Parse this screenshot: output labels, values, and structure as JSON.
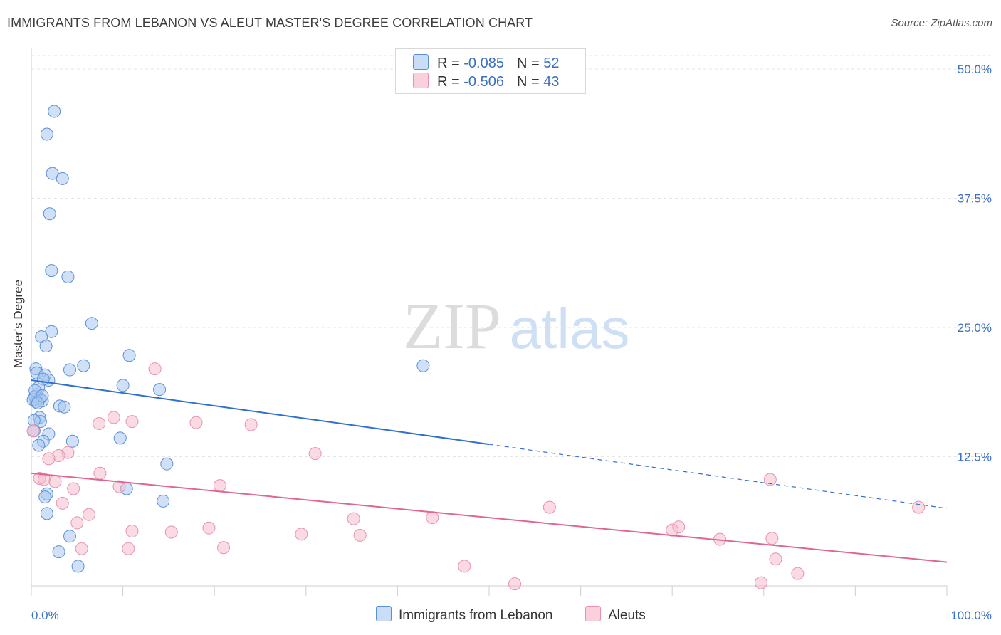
{
  "title": "IMMIGRANTS FROM LEBANON VS ALEUT MASTER'S DEGREE CORRELATION CHART",
  "source": "Source: ZipAtlas.com",
  "watermark": {
    "zip": "ZIP",
    "atlas": "atlas"
  },
  "legend": {
    "rows": [
      {
        "r_label": "R = ",
        "r_value": "-0.085",
        "n_label": "N = ",
        "n_value": "52",
        "color": "#a9c8f0"
      },
      {
        "r_label": "R = ",
        "r_value": "-0.506",
        "n_label": "N = ",
        "n_value": "43",
        "color": "#f5b8ca"
      }
    ]
  },
  "bottom_legend": [
    {
      "label": "Immigrants from Lebanon",
      "color": "#a9c8f0"
    },
    {
      "label": "Aleuts",
      "color": "#f5b8ca"
    }
  ],
  "colors": {
    "blue_fill": "#a9c8f0",
    "blue_stroke": "#5b8fd6",
    "blue_line": "#2f6fd0",
    "pink_fill": "#f5b8ca",
    "pink_stroke": "#e892ad",
    "pink_line": "#e0668f",
    "tick_label": "#3a6fc4",
    "grid": "#e6e6e6"
  },
  "chart_data": {
    "type": "scatter",
    "title": "IMMIGRANTS FROM LEBANON VS ALEUT MASTER'S DEGREE CORRELATION CHART",
    "xlabel": "",
    "ylabel": "Master's Degree",
    "xlim": [
      0,
      100
    ],
    "ylim": [
      0,
      50
    ],
    "x_tick_labels": [
      "0.0%",
      "100.0%"
    ],
    "y_ticks": [
      12.5,
      25.0,
      37.5,
      50.0
    ],
    "y_tick_labels": [
      "12.5%",
      "25.0%",
      "37.5%",
      "50.0%"
    ],
    "grid": "horizontal dashed",
    "legend_position": "top-center",
    "series": [
      {
        "name": "Immigrants from Lebanon",
        "R": -0.085,
        "N": 52,
        "trend": {
          "y_at_x0": 19.9,
          "y_at_x100": 7.5,
          "solid_until_x": 50
        },
        "points": [
          [
            2.5,
            45.9
          ],
          [
            1.7,
            43.7
          ],
          [
            2.3,
            39.9
          ],
          [
            3.4,
            39.4
          ],
          [
            2.0,
            36.0
          ],
          [
            2.2,
            30.5
          ],
          [
            4.0,
            29.9
          ],
          [
            6.6,
            25.4
          ],
          [
            2.2,
            24.6
          ],
          [
            1.1,
            24.1
          ],
          [
            1.6,
            23.2
          ],
          [
            10.7,
            22.3
          ],
          [
            5.7,
            21.3
          ],
          [
            4.2,
            20.9
          ],
          [
            0.5,
            21.0
          ],
          [
            0.6,
            20.6
          ],
          [
            1.5,
            20.4
          ],
          [
            1.9,
            19.9
          ],
          [
            1.3,
            20.0
          ],
          [
            0.8,
            19.2
          ],
          [
            0.6,
            18.5
          ],
          [
            0.4,
            18.3
          ],
          [
            0.9,
            18.1
          ],
          [
            1.2,
            17.9
          ],
          [
            0.5,
            17.8
          ],
          [
            3.1,
            17.4
          ],
          [
            3.6,
            17.3
          ],
          [
            0.9,
            16.3
          ],
          [
            1.0,
            15.9
          ],
          [
            1.9,
            14.7
          ],
          [
            1.3,
            14.0
          ],
          [
            0.8,
            13.6
          ],
          [
            4.5,
            14.0
          ],
          [
            9.7,
            14.3
          ],
          [
            14.0,
            19.0
          ],
          [
            10.0,
            19.4
          ],
          [
            14.8,
            11.8
          ],
          [
            10.4,
            9.4
          ],
          [
            1.7,
            8.9
          ],
          [
            1.5,
            8.6
          ],
          [
            14.4,
            8.2
          ],
          [
            1.7,
            7.0
          ],
          [
            4.2,
            4.8
          ],
          [
            3.0,
            3.3
          ],
          [
            5.1,
            1.9
          ],
          [
            42.8,
            21.3
          ],
          [
            0.4,
            18.9
          ],
          [
            0.2,
            18.0
          ],
          [
            0.3,
            16.0
          ],
          [
            1.2,
            18.4
          ],
          [
            0.7,
            17.7
          ],
          [
            0.3,
            15.0
          ]
        ]
      },
      {
        "name": "Aleuts",
        "R": -0.506,
        "N": 43,
        "trend": {
          "y_at_x0": 10.9,
          "y_at_x100": 2.3
        },
        "points": [
          [
            0.2,
            15.0
          ],
          [
            13.5,
            21.0
          ],
          [
            9.0,
            16.3
          ],
          [
            11.0,
            15.9
          ],
          [
            18.0,
            15.8
          ],
          [
            24.0,
            15.6
          ],
          [
            7.4,
            15.7
          ],
          [
            4.0,
            12.9
          ],
          [
            3.0,
            12.6
          ],
          [
            1.9,
            12.3
          ],
          [
            31.0,
            12.8
          ],
          [
            7.5,
            10.9
          ],
          [
            0.9,
            10.4
          ],
          [
            1.4,
            10.3
          ],
          [
            2.6,
            10.1
          ],
          [
            20.6,
            9.7
          ],
          [
            9.6,
            9.6
          ],
          [
            4.6,
            9.4
          ],
          [
            3.4,
            8.0
          ],
          [
            5.0,
            6.1
          ],
          [
            6.3,
            6.9
          ],
          [
            11.0,
            5.3
          ],
          [
            15.3,
            5.2
          ],
          [
            19.4,
            5.6
          ],
          [
            29.5,
            5.0
          ],
          [
            35.2,
            6.5
          ],
          [
            35.9,
            4.9
          ],
          [
            43.8,
            6.6
          ],
          [
            56.6,
            7.6
          ],
          [
            70.7,
            5.7
          ],
          [
            70.0,
            5.4
          ],
          [
            75.2,
            4.5
          ],
          [
            80.9,
            4.6
          ],
          [
            80.7,
            10.3
          ],
          [
            96.9,
            7.6
          ],
          [
            81.3,
            2.6
          ],
          [
            83.7,
            1.2
          ],
          [
            79.7,
            0.3
          ],
          [
            47.3,
            1.9
          ],
          [
            52.8,
            0.2
          ],
          [
            10.6,
            3.6
          ],
          [
            21.0,
            3.7
          ],
          [
            5.5,
            3.6
          ]
        ]
      }
    ]
  }
}
